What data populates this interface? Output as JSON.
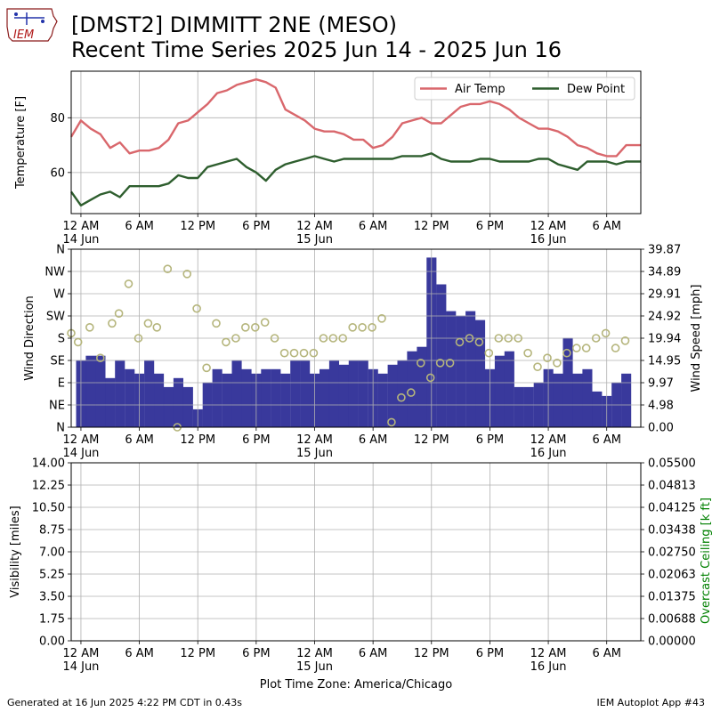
{
  "header": {
    "title_line1": "[DMST2] DIMMITT 2NE (MESO)",
    "title_line2": "Recent Time Series 2025 Jun 14 - 2025 Jun 16",
    "logo_text": "IEM"
  },
  "footer": {
    "generated": "Generated at 16 Jun 2025 4:22 PM CDT in 0.43s",
    "app": "IEM Autoplot App #43"
  },
  "xaxis": {
    "label": "Plot Time Zone: America/Chicago",
    "ticks": [
      {
        "h": 0,
        "label": "12 AM",
        "sub": "14 Jun"
      },
      {
        "h": 6,
        "label": "6 AM",
        "sub": ""
      },
      {
        "h": 12,
        "label": "12 PM",
        "sub": ""
      },
      {
        "h": 18,
        "label": "6 PM",
        "sub": ""
      },
      {
        "h": 24,
        "label": "12 AM",
        "sub": "15 Jun"
      },
      {
        "h": 30,
        "label": "6 AM",
        "sub": ""
      },
      {
        "h": 36,
        "label": "12 PM",
        "sub": ""
      },
      {
        "h": 42,
        "label": "6 PM",
        "sub": ""
      },
      {
        "h": 48,
        "label": "12 AM",
        "sub": "16 Jun"
      },
      {
        "h": 54,
        "label": "6 AM",
        "sub": ""
      }
    ]
  },
  "chart_data": [
    {
      "type": "line",
      "ylabel": "Temperature [F]",
      "xlim_hours_from_2025_06_14_0000": [
        -1,
        57.5
      ],
      "ylim": [
        45,
        97
      ],
      "yticks": [
        60,
        80
      ],
      "grid": true,
      "legend": "top-right",
      "series": [
        {
          "name": "Air Temp",
          "color": "#d9676c",
          "hours": [
            -1,
            0,
            1,
            2,
            3,
            4,
            5,
            6,
            7,
            8,
            9,
            10,
            11,
            12,
            13,
            14,
            15,
            16,
            17,
            18,
            19,
            20,
            21,
            22,
            23,
            24,
            25,
            26,
            27,
            28,
            29,
            30,
            31,
            32,
            33,
            34,
            35,
            36,
            37,
            38,
            39,
            40,
            41,
            42,
            43,
            44,
            45,
            46,
            47,
            48,
            49,
            50,
            51,
            52,
            53,
            54,
            55,
            56,
            57,
            57.5
          ],
          "values": [
            73,
            79,
            76,
            74,
            69,
            71,
            67,
            68,
            68,
            69,
            72,
            78,
            79,
            82,
            85,
            89,
            90,
            92,
            93,
            94,
            93,
            91,
            83,
            81,
            79,
            76,
            75,
            75,
            74,
            72,
            72,
            69,
            70,
            73,
            78,
            79,
            80,
            78,
            78,
            81,
            84,
            85,
            85,
            86,
            85,
            83,
            80,
            78,
            76,
            76,
            75,
            73,
            70,
            69,
            67,
            66,
            66,
            70,
            70,
            70
          ]
        },
        {
          "name": "Dew Point",
          "color": "#2e5e2e",
          "hours": [
            -1,
            0,
            1,
            2,
            3,
            4,
            5,
            6,
            7,
            8,
            9,
            10,
            11,
            12,
            13,
            14,
            15,
            16,
            17,
            18,
            19,
            20,
            21,
            22,
            23,
            24,
            25,
            26,
            27,
            28,
            29,
            30,
            31,
            32,
            33,
            34,
            35,
            36,
            37,
            38,
            39,
            40,
            41,
            42,
            43,
            44,
            45,
            46,
            47,
            48,
            49,
            50,
            51,
            52,
            53,
            54,
            55,
            56,
            57,
            57.5
          ],
          "values": [
            53,
            48,
            50,
            52,
            53,
            51,
            55,
            55,
            55,
            55,
            56,
            59,
            58,
            58,
            62,
            63,
            64,
            65,
            62,
            60,
            57,
            61,
            63,
            64,
            65,
            66,
            65,
            64,
            65,
            65,
            65,
            65,
            65,
            65,
            66,
            66,
            66,
            67,
            65,
            64,
            64,
            64,
            65,
            65,
            64,
            64,
            64,
            64,
            65,
            65,
            63,
            62,
            61,
            64,
            64,
            64,
            63,
            64,
            64,
            64
          ]
        }
      ]
    },
    {
      "type": "bar",
      "ylabel": "Wind Direction",
      "y2label": "Wind Speed [mph]",
      "xlim_hours_from_2025_06_14_0000": [
        -1,
        57.5
      ],
      "direction_ylim_deg": [
        0,
        360
      ],
      "direction_ticks": [
        {
          "deg": 0,
          "label": "N"
        },
        {
          "deg": 45,
          "label": "NE"
        },
        {
          "deg": 90,
          "label": "E"
        },
        {
          "deg": 135,
          "label": "SE"
        },
        {
          "deg": 180,
          "label": "S"
        },
        {
          "deg": 225,
          "label": "SW"
        },
        {
          "deg": 270,
          "label": "W"
        },
        {
          "deg": 315,
          "label": "NW"
        },
        {
          "deg": 360,
          "label": "N"
        }
      ],
      "speed_ylim": [
        0,
        39.87
      ],
      "speed_ticks": [
        "0.00",
        "4.98",
        "9.97",
        "14.95",
        "19.94",
        "24.92",
        "29.91",
        "34.89",
        "39.87"
      ],
      "grid": true,
      "speed_series": {
        "name": "Wind Speed",
        "color": "#333399",
        "start_hour": -0.5,
        "bin_hours": 1,
        "values": [
          15,
          16,
          16,
          11,
          15,
          13,
          12,
          15,
          12,
          9,
          11,
          9,
          4,
          10,
          13,
          12,
          15,
          13,
          12,
          13,
          13,
          12,
          15,
          15,
          12,
          13,
          15,
          14,
          15,
          15,
          13,
          12,
          14,
          15,
          17,
          18,
          38,
          32,
          26,
          25,
          26,
          24,
          13,
          16,
          17,
          9,
          9,
          10,
          13,
          12,
          20,
          12,
          13,
          8,
          7,
          10,
          12
        ]
      },
      "direction_series": {
        "name": "Wind Direction",
        "color": "#b5b57c",
        "points": [
          [
            -1,
            190
          ],
          [
            -0.3,
            172
          ],
          [
            0.9,
            202
          ],
          [
            2,
            140
          ],
          [
            3.2,
            210
          ],
          [
            3.9,
            230
          ],
          [
            4.9,
            290
          ],
          [
            5.9,
            180
          ],
          [
            6.9,
            210
          ],
          [
            7.8,
            202
          ],
          [
            8.9,
            320
          ],
          [
            9.9,
            0
          ],
          [
            10.9,
            310
          ],
          [
            11.9,
            240
          ],
          [
            12.9,
            120
          ],
          [
            13.9,
            210
          ],
          [
            14.9,
            172
          ],
          [
            15.9,
            180
          ],
          [
            16.9,
            202
          ],
          [
            17.9,
            202
          ],
          [
            18.9,
            212
          ],
          [
            19.9,
            180
          ],
          [
            20.9,
            150
          ],
          [
            21.9,
            150
          ],
          [
            22.9,
            150
          ],
          [
            23.9,
            150
          ],
          [
            24.9,
            180
          ],
          [
            25.9,
            180
          ],
          [
            26.9,
            180
          ],
          [
            27.9,
            202
          ],
          [
            28.9,
            202
          ],
          [
            29.9,
            202
          ],
          [
            30.9,
            220
          ],
          [
            31.9,
            10
          ],
          [
            32.9,
            60
          ],
          [
            33.9,
            70
          ],
          [
            34.9,
            130
          ],
          [
            35.9,
            100
          ],
          [
            36.9,
            130
          ],
          [
            37.9,
            130
          ],
          [
            38.9,
            172
          ],
          [
            39.9,
            180
          ],
          [
            40.9,
            172
          ],
          [
            41.9,
            150
          ],
          [
            42.9,
            180
          ],
          [
            43.9,
            180
          ],
          [
            44.9,
            180
          ],
          [
            45.9,
            150
          ],
          [
            46.9,
            122
          ],
          [
            47.9,
            140
          ],
          [
            48.9,
            130
          ],
          [
            49.9,
            150
          ],
          [
            50.9,
            160
          ],
          [
            51.9,
            160
          ],
          [
            52.9,
            180
          ],
          [
            53.9,
            190
          ],
          [
            54.9,
            160
          ],
          [
            55.9,
            175
          ]
        ]
      }
    },
    {
      "type": "line",
      "ylabel": "Visibility [miles]",
      "y2label": "Overcast Ceiling [k ft]",
      "y2label_color": "#008000",
      "xlim_hours_from_2025_06_14_0000": [
        -1,
        57.5
      ],
      "ylim": [
        0,
        14
      ],
      "yticks": [
        "0.00",
        "1.75",
        "3.50",
        "5.25",
        "7.00",
        "8.75",
        "10.50",
        "12.25",
        "14.00"
      ],
      "y2lim": [
        0,
        0.055
      ],
      "y2ticks": [
        "0.00000",
        "0.00688",
        "0.01375",
        "0.02063",
        "0.02750",
        "0.03438",
        "0.04125",
        "0.04813",
        "0.05500"
      ],
      "grid": true,
      "series": []
    }
  ]
}
